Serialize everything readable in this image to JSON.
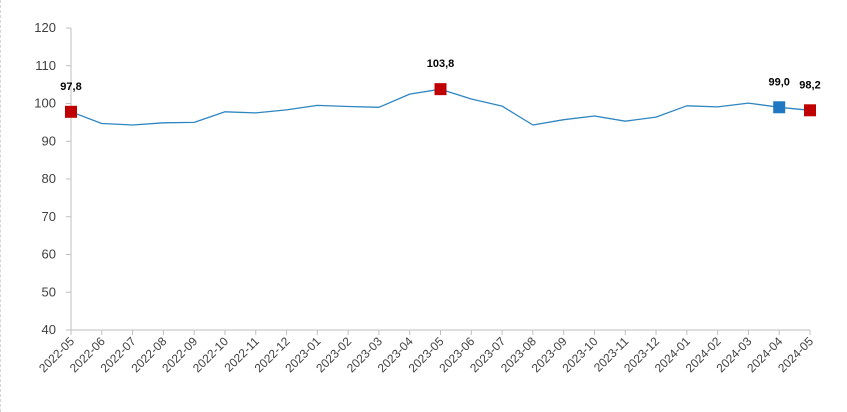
{
  "chart_data": {
    "type": "line",
    "title": "",
    "xlabel": "",
    "ylabel": "",
    "ylim": [
      40,
      120
    ],
    "yticks": [
      "40",
      "50",
      "60",
      "70",
      "80",
      "90",
      "100",
      "110",
      "120"
    ],
    "grid": false,
    "legend": "none",
    "categories": [
      "2022-05",
      "2022-06",
      "2022-07",
      "2022-08",
      "2022-09",
      "2022-10",
      "2022-11",
      "2022-12",
      "2023-01",
      "2023-02",
      "2023-03",
      "2023-04",
      "2023-05",
      "2023-06",
      "2023-07",
      "2023-08",
      "2023-09",
      "2023-10",
      "2023-11",
      "2023-12",
      "2024-01",
      "2024-02",
      "2024-03",
      "2024-04",
      "2024-05"
    ],
    "series": [
      {
        "values": [
          97.8,
          94.7,
          94.3,
          94.9,
          95.0,
          97.8,
          97.5,
          98.3,
          99.5,
          99.2,
          99.0,
          102.5,
          103.8,
          101.2,
          99.3,
          94.3,
          95.7,
          96.7,
          95.3,
          96.4,
          99.4,
          99.1,
          100.1,
          99.0,
          98.2
        ],
        "color": "#2e86c1"
      }
    ],
    "highlights": [
      {
        "category": "2022-05",
        "value": 97.8,
        "label": "97,8",
        "color": "#c00000"
      },
      {
        "category": "2023-05",
        "value": 103.8,
        "label": "103,8",
        "color": "#c00000"
      },
      {
        "category": "2024-04",
        "value": 99.0,
        "label": "99,0",
        "color": "#1f78c1"
      },
      {
        "category": "2024-05",
        "value": 98.2,
        "label": "98,2",
        "color": "#c00000"
      }
    ],
    "axis_color": "#bfbfbf"
  }
}
